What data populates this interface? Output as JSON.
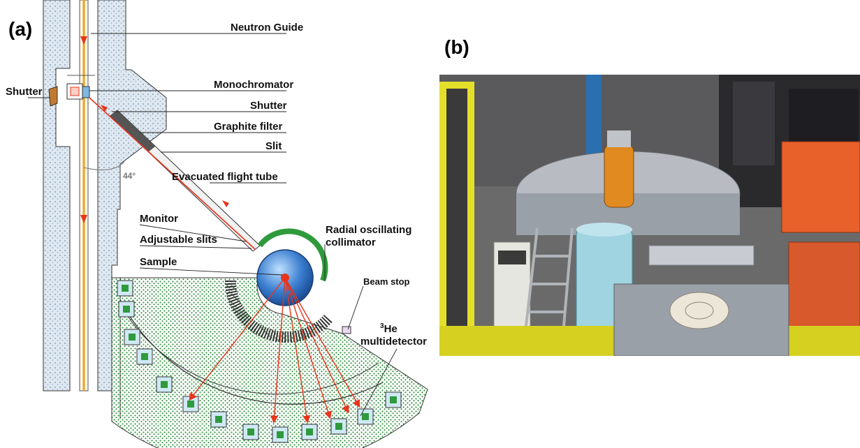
{
  "panels": {
    "a": "(a)",
    "b": "(b)"
  },
  "labels": {
    "neutron_guide": "Neutron Guide",
    "monochromator": "Monochromator",
    "shutter_right": "Shutter",
    "shutter_left": "Shutter",
    "graphite_filter": "Graphite filter",
    "slit": "Slit",
    "evacuated_flight_tube": "Evacuated flight tube",
    "angle": "44°",
    "monitor": "Monitor",
    "adjustable_slits": "Adjustable slits",
    "radial_collimator_line1": "Radial oscillating",
    "radial_collimator_line2": "collimator",
    "sample": "Sample",
    "beam_stop": "Beam stop",
    "he_superscript": "3",
    "he_text": "He",
    "multidetector": "multidetector"
  },
  "colors": {
    "shield_fill": "#dfe8f0",
    "shield_dots": "#6f8faf",
    "detector_green": "#2f9a3c",
    "beam_orange": "#f0a020",
    "ray_red": "#e8341c",
    "sample_blue": "#2f6fbe",
    "module_light": "#cfe9f4"
  }
}
